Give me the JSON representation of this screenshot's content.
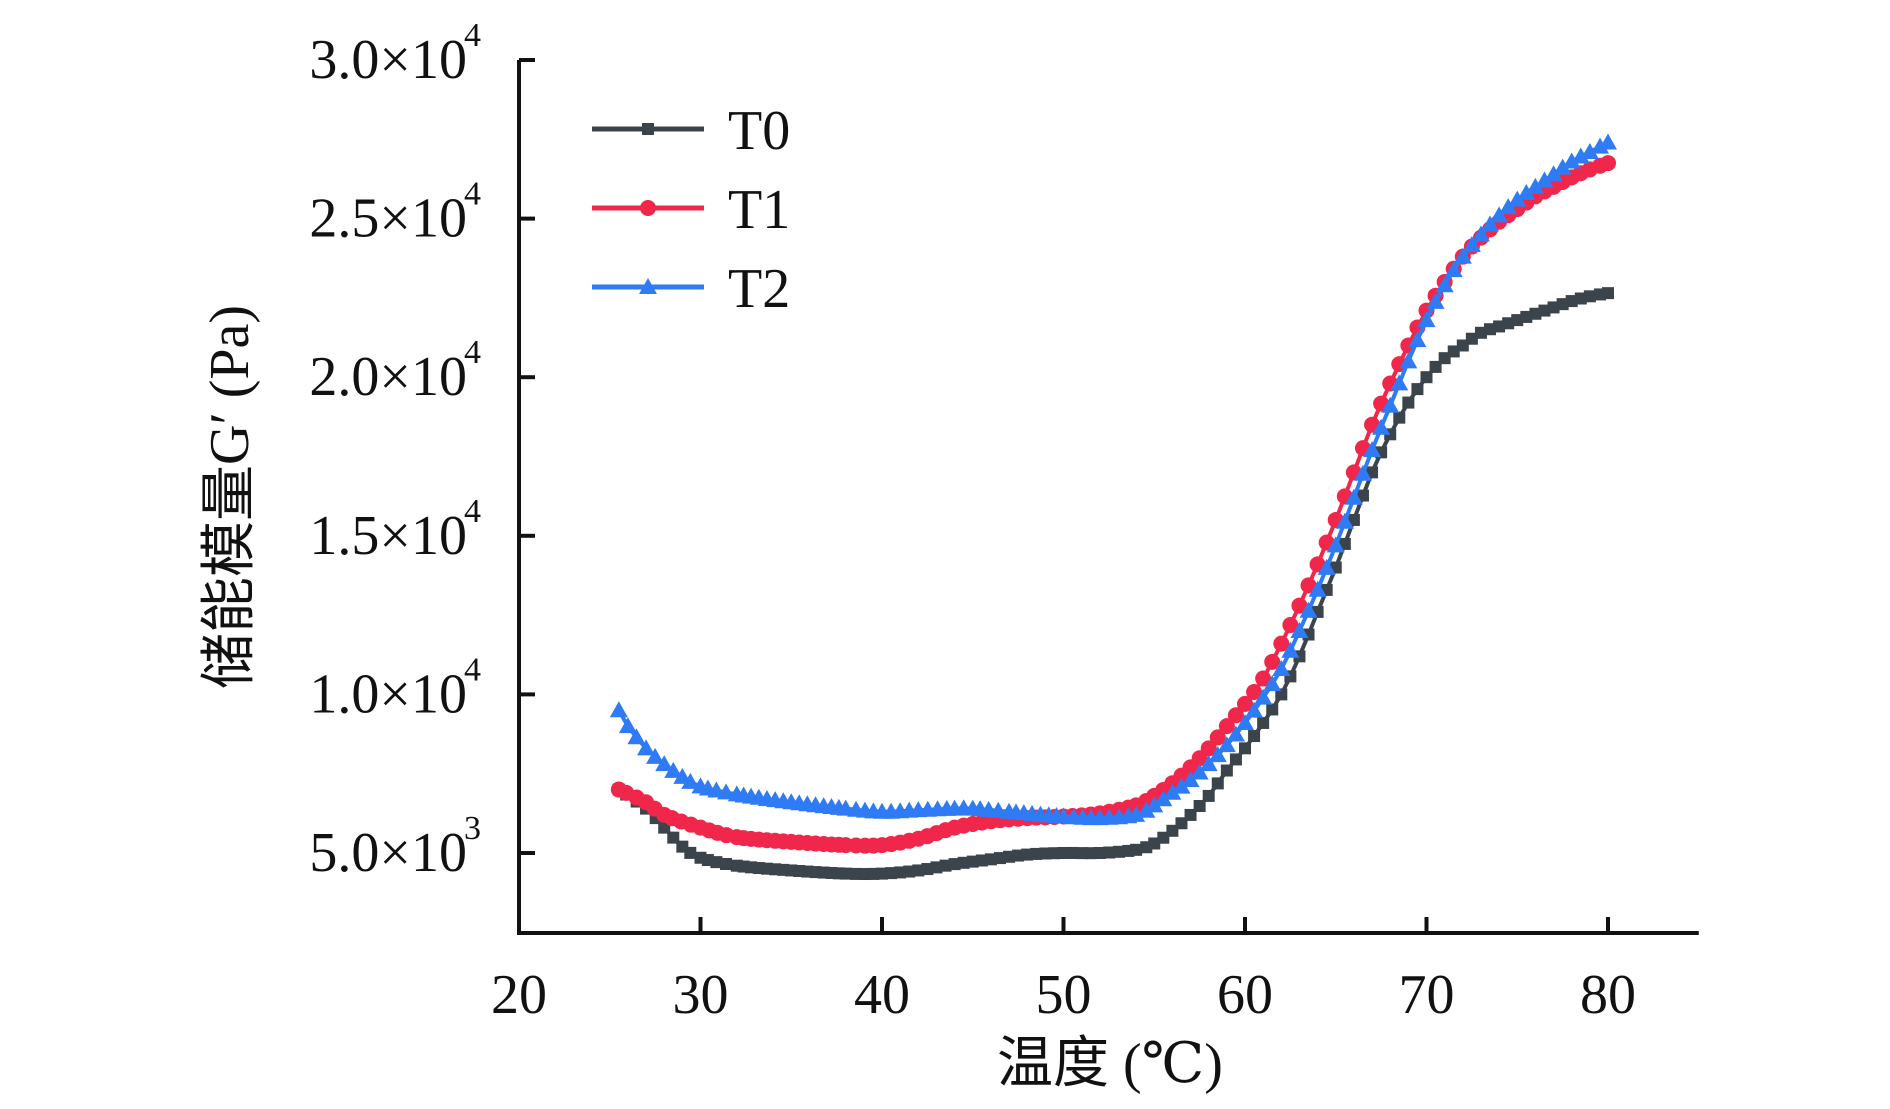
{
  "chart_data": {
    "type": "line",
    "title": "",
    "xlabel": "温度 (℃)",
    "ylabel": "储能模量G′ (Pa)",
    "xlim": [
      20,
      85
    ],
    "ylim": [
      2500,
      30000
    ],
    "xticks": [
      20,
      30,
      40,
      50,
      60,
      70,
      80
    ],
    "xtick_labels": [
      "20",
      "30",
      "40",
      "50",
      "60",
      "70",
      "80"
    ],
    "yticks": [
      5000,
      10000,
      15000,
      20000,
      25000,
      30000
    ],
    "ytick_labels": [
      {
        "mantissa": "5.0×10",
        "exp": "3"
      },
      {
        "mantissa": "1.0×10",
        "exp": "4"
      },
      {
        "mantissa": "1.5×10",
        "exp": "4"
      },
      {
        "mantissa": "2.0×10",
        "exp": "4"
      },
      {
        "mantissa": "2.5×10",
        "exp": "4"
      },
      {
        "mantissa": "3.0×10",
        "exp": "4"
      }
    ],
    "grid": false,
    "legend_position": "top-left",
    "series": [
      {
        "name": "T0",
        "color": "#3b444b",
        "marker": "square",
        "x": [
          25.5,
          27,
          28,
          29,
          30,
          32,
          35,
          38,
          40,
          42,
          44,
          46,
          48,
          50,
          52,
          54,
          55,
          56,
          57,
          58,
          59,
          60,
          61,
          62,
          63,
          64,
          65,
          66,
          67,
          68,
          69,
          70,
          71,
          72,
          73,
          74,
          75,
          76,
          77,
          78,
          79,
          80
        ],
        "values": [
          7000,
          6400,
          5800,
          5200,
          4850,
          4600,
          4450,
          4350,
          4350,
          4450,
          4650,
          4800,
          4950,
          5000,
          5000,
          5100,
          5300,
          5700,
          6200,
          6800,
          7600,
          8300,
          9100,
          10000,
          11200,
          12600,
          14000,
          15500,
          17000,
          18200,
          19200,
          20000,
          20600,
          21000,
          21400,
          21600,
          21800,
          22000,
          22200,
          22400,
          22550,
          22650
        ]
      },
      {
        "name": "T1",
        "color": "#f0264a",
        "marker": "circle",
        "x": [
          25.5,
          27,
          28,
          30,
          32,
          35,
          38,
          40,
          42,
          44,
          46,
          48,
          50,
          52,
          54,
          55,
          56,
          57,
          58,
          59,
          60,
          61,
          62,
          63,
          64,
          65,
          66,
          67,
          68,
          69,
          70,
          71,
          72,
          73,
          74,
          75,
          76,
          77,
          78,
          79,
          80
        ],
        "values": [
          7000,
          6600,
          6200,
          5800,
          5500,
          5350,
          5250,
          5250,
          5450,
          5800,
          6000,
          6100,
          6150,
          6250,
          6500,
          6800,
          7200,
          7700,
          8300,
          9000,
          9700,
          10500,
          11600,
          12800,
          14100,
          15500,
          17000,
          18500,
          19800,
          21000,
          22100,
          23000,
          23800,
          24400,
          24900,
          25300,
          25700,
          26000,
          26300,
          26550,
          26750
        ]
      },
      {
        "name": "T2",
        "color": "#2f7bf5",
        "marker": "triangle",
        "x": [
          25.5,
          26,
          27,
          28,
          29,
          30,
          32,
          35,
          38,
          40,
          42,
          44,
          45,
          47,
          50,
          52,
          54,
          55,
          56,
          57,
          58,
          59,
          60,
          61,
          62,
          63,
          64,
          65,
          66,
          67,
          68,
          69,
          70,
          71,
          72,
          73,
          74,
          75,
          76,
          77,
          78,
          79,
          80
        ],
        "values": [
          9500,
          9000,
          8300,
          7800,
          7400,
          7100,
          6850,
          6600,
          6400,
          6300,
          6350,
          6400,
          6400,
          6300,
          6150,
          6100,
          6200,
          6500,
          6900,
          7300,
          7800,
          8400,
          9100,
          9900,
          10800,
          12000,
          13300,
          14700,
          16200,
          17700,
          19100,
          20500,
          21800,
          22900,
          23800,
          24500,
          25100,
          25600,
          26000,
          26400,
          26800,
          27100,
          27400
        ]
      }
    ]
  }
}
